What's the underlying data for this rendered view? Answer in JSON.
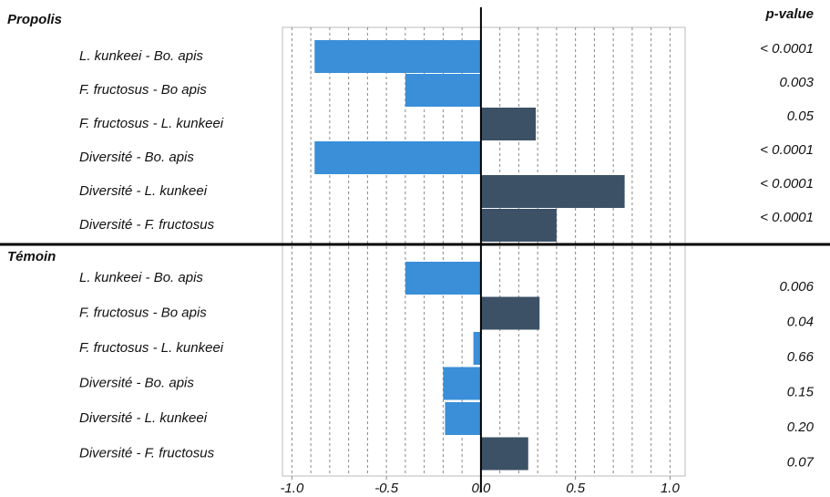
{
  "chart_data": {
    "type": "diverging-bar",
    "p_value_header": "p-value",
    "groups": [
      {
        "name": "Propolis",
        "categories": [
          "L. kunkeei - Bo. apis",
          "F. fructosus - Bo apis",
          "F. fructosus -  L. kunkeei",
          "Diversité - Bo. apis",
          "Diversité - L. kunkeei",
          "Diversité - F. fructosus"
        ],
        "values": [
          -0.88,
          -0.4,
          0.29,
          -0.88,
          0.76,
          0.4
        ],
        "p_values": [
          "< 0.0001",
          "0.003",
          "0.05",
          "< 0.0001",
          "< 0.0001",
          "< 0.0001"
        ]
      },
      {
        "name": "Témoin",
        "categories": [
          "L. kunkeei - Bo. apis",
          "F. fructosus - Bo apis",
          "F. fructosus -  L. kunkeei",
          "Diversité - Bo. apis",
          "Diversité - L. kunkeei",
          "Diversité - F. fructosus"
        ],
        "values": [
          -0.4,
          0.31,
          -0.04,
          -0.2,
          -0.19,
          0.25
        ],
        "p_values": [
          "0.006",
          "0.04",
          "0.66",
          "0.15",
          "0.20",
          "0.07"
        ]
      }
    ],
    "negative_color": "#3a8fd8",
    "positive_color": "#3c5166",
    "xlim": [
      -1.05,
      1.08
    ],
    "xticks": [
      {
        "value": -1,
        "label": "-1.0"
      },
      -0.5,
      {
        "value": 0,
        "label": "0.0"
      },
      0.5,
      {
        "value": 1,
        "label": "1.0"
      }
    ],
    "minor_xticks": [
      -1.0,
      -0.9,
      -0.8,
      -0.7,
      -0.6,
      -0.5,
      -0.4,
      -0.3,
      -0.2,
      -0.1,
      0.1,
      0.2,
      0.3,
      0.4,
      0.5,
      0.6,
      0.7,
      0.8,
      0.9,
      1.0
    ],
    "grid": true
  }
}
